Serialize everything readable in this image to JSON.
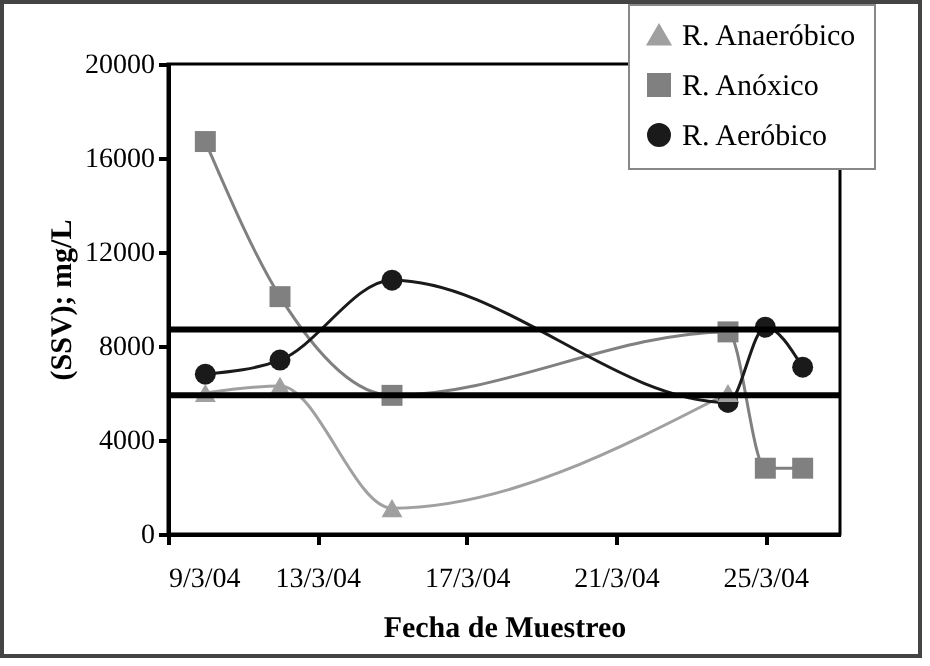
{
  "chart_data": {
    "type": "line",
    "xlabel": "Fecha de Muestreo",
    "ylabel": "(SSV); mg/L",
    "ylim": [
      0,
      20000
    ],
    "yticks": [
      0,
      4000,
      8000,
      12000,
      16000,
      20000
    ],
    "xlim": [
      "--03-09",
      "--03-27"
    ],
    "xticks": [
      {
        "value": "--03-09",
        "label": "9/3/04"
      },
      {
        "value": "--03-13",
        "label": "13/3/04"
      },
      {
        "value": "--03-17",
        "label": "17/3/04"
      },
      {
        "value": "--03-21",
        "label": "21/3/04"
      },
      {
        "value": "--03-25",
        "label": "25/3/04"
      }
    ],
    "legend": "top right",
    "grid": false,
    "series": [
      {
        "name": "R. Anaeróbico",
        "color": "#a0a0a0",
        "marker": "triangle",
        "x": [
          "--03-10",
          "--03-12",
          "--03-15",
          "--03-24"
        ],
        "values": [
          6000,
          6300,
          1100,
          6000
        ]
      },
      {
        "name": "R. Anóxico",
        "color": "#808080",
        "marker": "square",
        "x": [
          "--03-10",
          "--03-12",
          "--03-15",
          "--03-24",
          "--03-25",
          "--03-26"
        ],
        "values": [
          16700,
          10100,
          5900,
          8600,
          2800,
          2800
        ]
      },
      {
        "name": "R. Aeróbico",
        "color": "#1a1a1a",
        "marker": "circle",
        "x": [
          "--03-10",
          "--03-12",
          "--03-15",
          "--03-24",
          "--03-25",
          "--03-26"
        ],
        "values": [
          6800,
          7400,
          10800,
          5600,
          8800,
          7100
        ]
      }
    ],
    "ref_lines": [
      {
        "axis": "y",
        "value": 8700,
        "color": "#000000"
      },
      {
        "axis": "y",
        "value": 5900,
        "color": "#000000"
      }
    ]
  }
}
